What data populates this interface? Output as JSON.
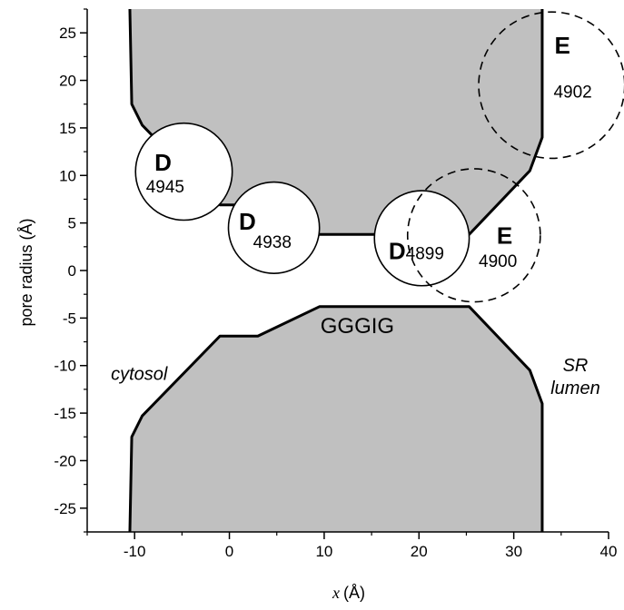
{
  "chart_data": {
    "type": "diagram",
    "xlabel_var": "x",
    "xlabel_unit": "(Å)",
    "ylabel": "pore radius (Å)",
    "xlim": [
      -15,
      40
    ],
    "ylim": [
      -27.5,
      27.5
    ],
    "x_ticks": [
      -10,
      0,
      10,
      20,
      30,
      40
    ],
    "y_ticks": [
      -25,
      -20,
      -15,
      -10,
      -5,
      0,
      5,
      10,
      15,
      20,
      25
    ],
    "x_tick_labels": [
      "-10",
      "0",
      "10",
      "20",
      "30",
      "40"
    ],
    "y_tick_labels": [
      "-25",
      "-20",
      "-15",
      "-10",
      "-5",
      "0",
      "5",
      "10",
      "15",
      "20",
      "25"
    ],
    "pore_profile": [
      [
        -10.5,
        27.5
      ],
      [
        -10.3,
        17.5
      ],
      [
        -9.2,
        15.3
      ],
      [
        -1.0,
        6.9
      ],
      [
        3.0,
        6.9
      ],
      [
        9.5,
        3.8
      ],
      [
        25.3,
        3.8
      ],
      [
        31.7,
        10.5
      ],
      [
        33.0,
        14.0
      ],
      [
        33.0,
        27.5
      ]
    ],
    "lower_profile": [
      [
        -10.5,
        -27.5
      ],
      [
        -10.3,
        -17.5
      ],
      [
        -9.2,
        -15.3
      ],
      [
        -1.0,
        -6.9
      ],
      [
        3.0,
        -6.9
      ],
      [
        9.5,
        -3.8
      ],
      [
        25.3,
        -3.8
      ],
      [
        31.7,
        -10.5
      ],
      [
        33.0,
        -14.0
      ],
      [
        33.0,
        -27.5
      ]
    ],
    "residues": [
      {
        "letter": "D",
        "number": "4945",
        "cx": -4.8,
        "cy": 10.4,
        "r": 5.1,
        "dashed": false,
        "letter_at": [
          -7.9,
          10.5
        ],
        "number_at": [
          -8.8,
          8.2
        ]
      },
      {
        "letter": "D",
        "number": "4938",
        "cx": 4.7,
        "cy": 4.5,
        "r": 4.8,
        "dashed": false,
        "letter_at": [
          1.0,
          4.3
        ],
        "number_at": [
          2.5,
          2.4
        ]
      },
      {
        "letter": "D",
        "number": "4899",
        "cx": 20.3,
        "cy": 3.4,
        "r": 5.0,
        "dashed": false,
        "letter_at": [
          16.8,
          1.2
        ],
        "number_at": [
          18.6,
          1.2
        ]
      },
      {
        "letter": "E",
        "number": "4900",
        "cx": 25.8,
        "cy": 3.7,
        "r": 7.0,
        "dashed": true,
        "letter_at": [
          28.2,
          2.8
        ],
        "number_at": [
          26.3,
          0.4
        ]
      },
      {
        "letter": "E",
        "number": "4902",
        "cx": 34.0,
        "cy": 19.5,
        "r": 7.7,
        "dashed": true,
        "letter_at": [
          34.3,
          22.8
        ],
        "number_at": [
          34.2,
          18.2
        ]
      }
    ],
    "labels": [
      {
        "text": "GGGIG",
        "x": 13.5,
        "y": -6.6,
        "cls": "motif-label"
      },
      {
        "text": "cytosol",
        "x": -12.5,
        "y": -11.5,
        "cls": "region-label"
      },
      {
        "text": "SR",
        "x": 36.5,
        "y": -10.6,
        "cls": "region-label"
      },
      {
        "text": "lumen",
        "x": 36.5,
        "y": -13.0,
        "cls": "region-label"
      }
    ]
  }
}
